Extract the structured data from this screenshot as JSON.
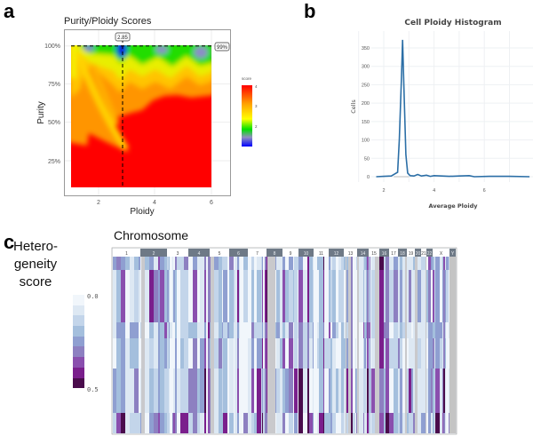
{
  "panels": {
    "a": "a",
    "b": "b",
    "c": "c"
  },
  "chart_data": [
    {
      "panel": "a",
      "type": "heatmap",
      "title": "Purity/Ploidy Scores",
      "xlabel": "Ploidy",
      "ylabel": "Purity",
      "xticks": [
        "2",
        "4",
        "6"
      ],
      "yticks": [
        "25%",
        "50%",
        "75%",
        "100%"
      ],
      "xlim": [
        1,
        6
      ],
      "ylim_percent": [
        7,
        100
      ],
      "selected_ploidy": 2.85,
      "selected_ploidy_label": "2.85",
      "selected_purity_label": "99%",
      "colorbar": {
        "title": "score",
        "ticks": [
          "4",
          "3",
          "2"
        ],
        "range": [
          1,
          4
        ],
        "colors": [
          "#0000ff",
          "#8a8ac8",
          "#00e000",
          "#ffff00",
          "#ffa500",
          "#ff0000"
        ]
      },
      "grid": true
    },
    {
      "panel": "b",
      "type": "line",
      "title": "Cell Ploidy Histogram",
      "xlabel": "Average Ploidy",
      "ylabel": "Cells",
      "xticks": [
        "2",
        "4",
        "6"
      ],
      "yticks": [
        "0",
        "50",
        "100",
        "150",
        "200",
        "250",
        "300",
        "350"
      ],
      "xlim": [
        1.7,
        7.8
      ],
      "ylim": [
        0,
        380
      ],
      "grid": true,
      "color": "#2b6ea6",
      "x": [
        1.7,
        2.0,
        2.3,
        2.45,
        2.55,
        2.62,
        2.7,
        2.75,
        2.8,
        2.88,
        2.95,
        3.05,
        3.2,
        3.35,
        3.5,
        3.7,
        3.85,
        4.0,
        4.3,
        4.6,
        5.0,
        5.4,
        5.6,
        6.2,
        7.0,
        7.8
      ],
      "y": [
        0,
        1,
        2,
        8,
        12,
        100,
        260,
        372,
        250,
        60,
        10,
        3,
        2,
        6,
        2,
        4,
        1,
        3,
        2,
        1,
        2,
        3,
        0,
        1,
        1,
        0
      ]
    },
    {
      "panel": "c",
      "type": "heatmap",
      "title": "Chromosome",
      "chromosomes": [
        "1",
        "2",
        "3",
        "4",
        "5",
        "6",
        "7",
        "8",
        "9",
        "10",
        "11",
        "12",
        "13",
        "14",
        "15",
        "16",
        "17",
        "18",
        "19",
        "20",
        "21",
        "22",
        "X",
        "Y"
      ],
      "legend": {
        "title_lines": [
          "Hetero-",
          "geneity",
          "score"
        ],
        "min_label": "0.0",
        "max_label": "0.5",
        "range": [
          0.0,
          0.5
        ],
        "colors": [
          "#f1f6fb",
          "#dde8f3",
          "#c3d5ea",
          "#a4bfdd",
          "#8f9fd1",
          "#8d80c1",
          "#8a4fae",
          "#7a1f8c",
          "#4a0c4c"
        ]
      }
    }
  ]
}
